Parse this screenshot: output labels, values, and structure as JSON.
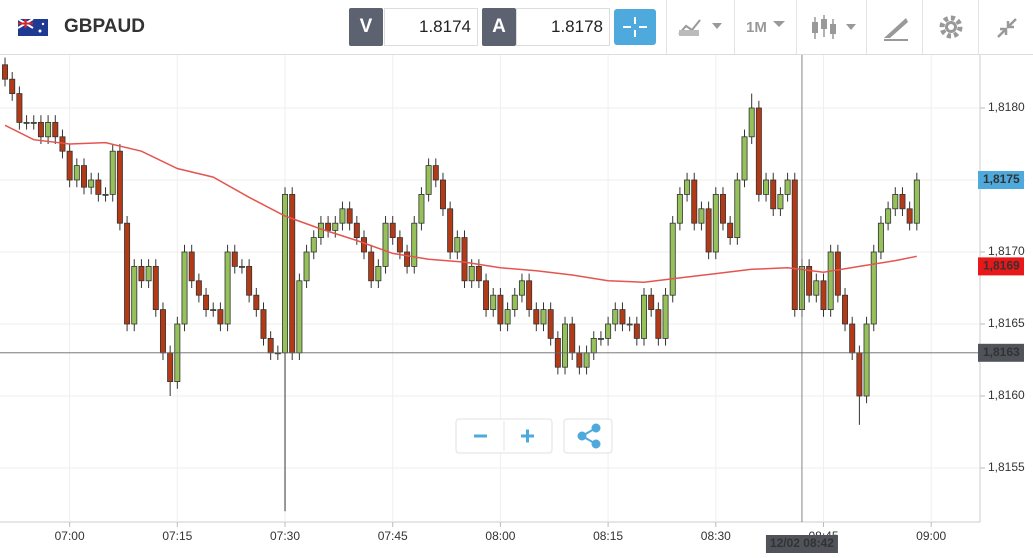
{
  "header": {
    "symbol": "GBPAUD",
    "bid_label": "V",
    "bid": "1.8174",
    "ask_label": "A",
    "ask": "1.8178",
    "timeframe": "1M"
  },
  "chart_data": {
    "type": "candlestick",
    "x": [
      411,
      412,
      413,
      414,
      415,
      416,
      417,
      418,
      419,
      420,
      421,
      422,
      423,
      424,
      425,
      426,
      427,
      428,
      429,
      430,
      431,
      432,
      433,
      434,
      435,
      436,
      437,
      438,
      439,
      440,
      441,
      442,
      443,
      444,
      445,
      446,
      447,
      448,
      449,
      450,
      451,
      452,
      453,
      454,
      455,
      456,
      457,
      458,
      459,
      460,
      461,
      462,
      463,
      464,
      465,
      466,
      467,
      468,
      469,
      470,
      471,
      472,
      473,
      474,
      475,
      476,
      477,
      478,
      479,
      480,
      481,
      482,
      483,
      484,
      485,
      486,
      487,
      488,
      489,
      490,
      491,
      492,
      493,
      494,
      495,
      496,
      497,
      498,
      499,
      500,
      501,
      502,
      503,
      504,
      505,
      506,
      507,
      508,
      509,
      510,
      511,
      512,
      513,
      514,
      515,
      516,
      517,
      518,
      519,
      520,
      521,
      522,
      523,
      524,
      525,
      526,
      527,
      528,
      529,
      530,
      531,
      532,
      533,
      534,
      535,
      536,
      537,
      538
    ],
    "open": [
      1.8183,
      1.8182,
      1.8181,
      1.8179,
      1.8179,
      1.8179,
      1.8178,
      1.8179,
      1.8178,
      1.8177,
      1.8175,
      1.8176,
      1.81745,
      1.8175,
      1.8174,
      1.8174,
      1.8177,
      1.8172,
      1.8165,
      1.8169,
      1.8168,
      1.8169,
      1.8166,
      1.8163,
      1.8161,
      1.8165,
      1.817,
      1.8168,
      1.8167,
      1.8166,
      1.8166,
      1.8165,
      1.817,
      1.8169,
      1.8169,
      1.8167,
      1.8166,
      1.8164,
      1.8163,
      1.8163,
      1.8174,
      1.8163,
      1.8168,
      1.817,
      1.8171,
      1.8172,
      1.81715,
      1.8172,
      1.8173,
      1.8172,
      1.8171,
      1.817,
      1.8168,
      1.8169,
      1.8172,
      1.8171,
      1.817,
      1.8169,
      1.8172,
      1.8174,
      1.8176,
      1.8175,
      1.8173,
      1.817,
      1.8171,
      1.8168,
      1.8169,
      1.8168,
      1.8166,
      1.8167,
      1.8165,
      1.8166,
      1.8167,
      1.8168,
      1.8166,
      1.8165,
      1.8166,
      1.8164,
      1.8162,
      1.8165,
      1.8163,
      1.8162,
      1.8163,
      1.8164,
      1.8164,
      1.8165,
      1.8166,
      1.8165,
      1.8165,
      1.8164,
      1.8167,
      1.8166,
      1.8164,
      1.8167,
      1.8172,
      1.8174,
      1.8175,
      1.8172,
      1.8173,
      1.817,
      1.8174,
      1.8172,
      1.8171,
      1.8175,
      1.8178,
      1.818,
      1.8174,
      1.8175,
      1.8173,
      1.8174,
      1.8175,
      1.8166,
      1.8169,
      1.8167,
      1.8168,
      1.8166,
      1.817,
      1.8167,
      1.8165,
      1.8163,
      1.816,
      1.8165,
      1.817,
      1.8172,
      1.8173,
      1.8174,
      1.8173,
      1.8172
    ],
    "high": [
      1.81835,
      1.81825,
      1.81815,
      1.81795,
      1.81795,
      1.81795,
      1.81795,
      1.81795,
      1.81785,
      1.81775,
      1.81765,
      1.81765,
      1.81755,
      1.81755,
      1.81745,
      1.81775,
      1.81775,
      1.81725,
      1.81695,
      1.81695,
      1.81695,
      1.81695,
      1.81665,
      1.81635,
      1.81655,
      1.81705,
      1.81705,
      1.81685,
      1.81675,
      1.81665,
      1.81665,
      1.81705,
      1.81705,
      1.81695,
      1.81695,
      1.81675,
      1.81665,
      1.81645,
      1.81635,
      1.81745,
      1.81745,
      1.81685,
      1.81705,
      1.81715,
      1.81725,
      1.81725,
      1.81725,
      1.81735,
      1.81735,
      1.81725,
      1.81715,
      1.81705,
      1.81695,
      1.81725,
      1.81725,
      1.81715,
      1.81705,
      1.81725,
      1.81745,
      1.81765,
      1.81765,
      1.81755,
      1.81735,
      1.81715,
      1.81715,
      1.81695,
      1.81695,
      1.81685,
      1.81675,
      1.81675,
      1.81665,
      1.81675,
      1.81685,
      1.81685,
      1.81665,
      1.81665,
      1.81665,
      1.81645,
      1.81655,
      1.81655,
      1.81635,
      1.81635,
      1.81645,
      1.81645,
      1.81655,
      1.81665,
      1.81665,
      1.81655,
      1.81655,
      1.81675,
      1.81675,
      1.81665,
      1.81675,
      1.81725,
      1.81745,
      1.81755,
      1.81755,
      1.81735,
      1.81735,
      1.81745,
      1.81745,
      1.81725,
      1.81755,
      1.81785,
      1.8181,
      1.81805,
      1.81755,
      1.81755,
      1.81745,
      1.81755,
      1.81755,
      1.81695,
      1.81695,
      1.81685,
      1.81685,
      1.81705,
      1.81705,
      1.81675,
      1.81655,
      1.81635,
      1.81655,
      1.81705,
      1.81725,
      1.81735,
      1.81745,
      1.81745,
      1.81735,
      1.81755
    ],
    "low": [
      1.81815,
      1.81805,
      1.81785,
      1.81785,
      1.81785,
      1.81775,
      1.81775,
      1.81775,
      1.81765,
      1.81745,
      1.81745,
      1.8174,
      1.8174,
      1.81735,
      1.81735,
      1.81735,
      1.81715,
      1.81645,
      1.81645,
      1.81675,
      1.81675,
      1.81655,
      1.81625,
      1.816,
      1.81605,
      1.81645,
      1.81675,
      1.81665,
      1.81655,
      1.81655,
      1.81645,
      1.81645,
      1.81685,
      1.81685,
      1.81665,
      1.81655,
      1.81635,
      1.81625,
      1.81625,
      1.8152,
      1.81625,
      1.81625,
      1.81675,
      1.81695,
      1.81705,
      1.8171,
      1.8171,
      1.81715,
      1.81715,
      1.81705,
      1.81695,
      1.81675,
      1.81675,
      1.81685,
      1.81705,
      1.81695,
      1.81685,
      1.81685,
      1.81715,
      1.81735,
      1.81745,
      1.81725,
      1.81695,
      1.81695,
      1.81675,
      1.81675,
      1.81675,
      1.81655,
      1.81655,
      1.81645,
      1.81645,
      1.81655,
      1.81665,
      1.81655,
      1.81645,
      1.81645,
      1.81635,
      1.81615,
      1.81615,
      1.81625,
      1.81615,
      1.81615,
      1.81625,
      1.81635,
      1.81635,
      1.81645,
      1.81645,
      1.81645,
      1.81635,
      1.81635,
      1.81655,
      1.81635,
      1.81635,
      1.81665,
      1.81715,
      1.81735,
      1.81715,
      1.81715,
      1.81695,
      1.81695,
      1.81715,
      1.81705,
      1.81705,
      1.81745,
      1.81775,
      1.81735,
      1.81735,
      1.81725,
      1.81725,
      1.81735,
      1.81655,
      1.81655,
      1.81665,
      1.81665,
      1.81655,
      1.81655,
      1.81665,
      1.81645,
      1.81625,
      1.8158,
      1.81595,
      1.81645,
      1.81695,
      1.81715,
      1.81725,
      1.81725,
      1.81715,
      1.81715
    ],
    "close": [
      1.8182,
      1.8181,
      1.8179,
      1.8179,
      1.8179,
      1.8178,
      1.8179,
      1.8178,
      1.8177,
      1.8175,
      1.8176,
      1.81745,
      1.8175,
      1.8174,
      1.8174,
      1.8177,
      1.8172,
      1.8165,
      1.8169,
      1.8168,
      1.8169,
      1.8166,
      1.8163,
      1.8161,
      1.8165,
      1.817,
      1.8168,
      1.8167,
      1.8166,
      1.8166,
      1.8165,
      1.817,
      1.8169,
      1.8169,
      1.8167,
      1.8166,
      1.8164,
      1.8163,
      1.8163,
      1.8174,
      1.8163,
      1.8168,
      1.817,
      1.8171,
      1.8172,
      1.81715,
      1.8172,
      1.8173,
      1.8172,
      1.8171,
      1.817,
      1.8168,
      1.8169,
      1.8172,
      1.8171,
      1.817,
      1.8169,
      1.8172,
      1.8174,
      1.8176,
      1.8175,
      1.8173,
      1.817,
      1.8171,
      1.8168,
      1.8169,
      1.8168,
      1.8166,
      1.8167,
      1.8165,
      1.8166,
      1.8167,
      1.8168,
      1.8166,
      1.8165,
      1.8166,
      1.8164,
      1.8162,
      1.8165,
      1.8163,
      1.8162,
      1.8163,
      1.8164,
      1.8164,
      1.8165,
      1.8166,
      1.8165,
      1.8165,
      1.8164,
      1.8167,
      1.8166,
      1.8164,
      1.8167,
      1.8172,
      1.8174,
      1.8175,
      1.8172,
      1.8173,
      1.817,
      1.8174,
      1.8172,
      1.8171,
      1.8175,
      1.8178,
      1.818,
      1.8174,
      1.8175,
      1.8173,
      1.8174,
      1.8175,
      1.8166,
      1.8169,
      1.8167,
      1.8168,
      1.8166,
      1.817,
      1.8167,
      1.8165,
      1.8163,
      1.816,
      1.8165,
      1.817,
      1.8172,
      1.8173,
      1.8174,
      1.8173,
      1.8172,
      1.8175
    ],
    "up_color": "#95c05a",
    "down_color": "#b23a17",
    "moving_average": {
      "color": "#e5554f",
      "x": [
        411,
        415,
        420,
        425,
        430,
        435,
        440,
        445,
        450,
        455,
        460,
        465,
        470,
        475,
        480,
        485,
        490,
        495,
        500,
        505,
        510,
        515,
        520,
        525,
        530,
        535,
        538
      ],
      "values": [
        1.81788,
        1.81778,
        1.81775,
        1.81776,
        1.8177,
        1.81758,
        1.81752,
        1.81738,
        1.81725,
        1.81716,
        1.81708,
        1.81699,
        1.81695,
        1.81693,
        1.81689,
        1.81687,
        1.81684,
        1.8168,
        1.81679,
        1.81682,
        1.81685,
        1.81688,
        1.81689,
        1.81686,
        1.8169,
        1.81694,
        1.81697
      ]
    },
    "xlim": [
      410.3,
      546.8
    ],
    "ylim": [
      1.815125,
      1.818368
    ],
    "xticks": [
      {
        "value": 420,
        "label": "07:00"
      },
      {
        "value": 435,
        "label": "07:15"
      },
      {
        "value": 450,
        "label": "07:30"
      },
      {
        "value": 465,
        "label": "07:45"
      },
      {
        "value": 480,
        "label": "08:00"
      },
      {
        "value": 495,
        "label": "08:15"
      },
      {
        "value": 510,
        "label": "08:30"
      },
      {
        "value": 525,
        "label": "08:45"
      },
      {
        "value": 540,
        "label": "09:00"
      }
    ],
    "yticks": [
      {
        "value": 1.8155,
        "label": "1,8155"
      },
      {
        "value": 1.816,
        "label": "1,8160"
      },
      {
        "value": 1.8165,
        "label": "1,8165"
      },
      {
        "value": 1.817,
        "label": "1,8170"
      },
      {
        "value": 1.8175,
        "label": "1,8175"
      },
      {
        "value": 1.818,
        "label": "1,8180"
      }
    ],
    "grid": true,
    "price_tags": [
      {
        "value": 1.8175,
        "label": "1,8175",
        "color": "#4ea9dc"
      },
      {
        "value": 1.8169,
        "label": "1,8169",
        "color": "#e8171a"
      },
      {
        "value": 1.8163,
        "label": "1,8163",
        "color": "#50535a"
      }
    ],
    "crosshair": {
      "x": 522,
      "label": "12/02 08:42"
    }
  }
}
